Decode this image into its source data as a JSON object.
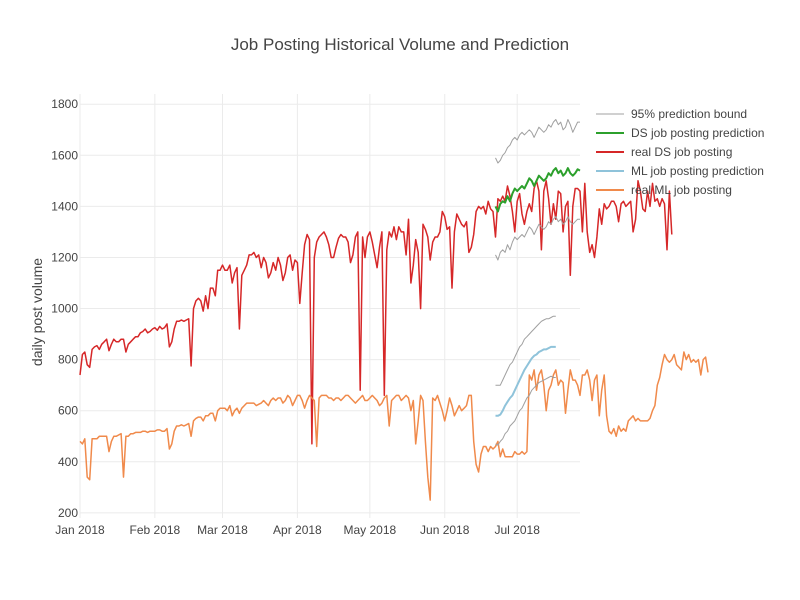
{
  "chart_data": {
    "type": "line",
    "title": "Job Posting Historical Volume and Prediction",
    "xlabel": "",
    "ylabel": "daily post volume",
    "x_range": [
      "2018-01-01",
      "2018-07-27"
    ],
    "ylim": [
      180,
      1840
    ],
    "grid": true,
    "legend_position": "right",
    "x_ticks": [
      {
        "date": "2018-01-01",
        "label": "Jan 2018"
      },
      {
        "date": "2018-02-01",
        "label": "Feb 2018"
      },
      {
        "date": "2018-03-01",
        "label": "Mar 2018"
      },
      {
        "date": "2018-04-01",
        "label": "Apr 2018"
      },
      {
        "date": "2018-05-01",
        "label": "May 2018"
      },
      {
        "date": "2018-06-01",
        "label": "Jun 2018"
      },
      {
        "date": "2018-07-01",
        "label": "Jul 2018"
      }
    ],
    "y_ticks": [
      200,
      400,
      600,
      800,
      1000,
      1200,
      1400,
      1600,
      1800
    ],
    "legend": [
      {
        "name": "95% prediction bound",
        "color": "#a0a0a0"
      },
      {
        "name": "DS job posting prediction",
        "color": "#2ca02c"
      },
      {
        "name": "real DS job posting",
        "color": "#d62728"
      },
      {
        "name": "ML job posting prediction",
        "color": "#8fc3da"
      },
      {
        "name": "real ML job posting",
        "color": "#f08a4b"
      }
    ],
    "series": [
      {
        "name": "real DS job posting",
        "color": "#d62728",
        "width": 1.5,
        "start_date": "2018-01-01",
        "values": [
          740,
          820,
          830,
          780,
          770,
          840,
          850,
          855,
          840,
          860,
          870,
          880,
          835,
          860,
          880,
          870,
          870,
          880,
          880,
          830,
          860,
          870,
          880,
          890,
          890,
          905,
          910,
          920,
          905,
          910,
          920,
          925,
          915,
          930,
          920,
          925,
          940,
          850,
          870,
          920,
          950,
          950,
          955,
          950,
          955,
          960,
          775,
          1000,
          1030,
          1040,
          1030,
          990,
          1050,
          1000,
          1080,
          1080,
          1050,
          1150,
          1150,
          1170,
          1150,
          1150,
          1170,
          1100,
          1140,
          1160,
          920,
          1130,
          1150,
          1170,
          1210,
          1210,
          1220,
          1200,
          1210,
          1160,
          1200,
          1180,
          1120,
          1140,
          1180,
          1150,
          1200,
          1170,
          1110,
          1140,
          1200,
          1210,
          1150,
          1190,
          1180,
          1020,
          1140,
          1250,
          1290,
          1270,
          470,
          1200,
          1260,
          1280,
          1290,
          1300,
          1280,
          1250,
          1200,
          1200,
          1240,
          1275,
          1290,
          1280,
          1280,
          1260,
          1180,
          1210,
          1280,
          1300,
          680,
          1280,
          1200,
          1280,
          1300,
          1260,
          1210,
          1160,
          1240,
          1300,
          660,
          1230,
          1300,
          1280,
          1320,
          1270,
          1320,
          1300,
          1300,
          1210,
          1350,
          1100,
          1170,
          1270,
          1220,
          1000,
          1330,
          1310,
          1280,
          1190,
          1260,
          1280,
          1280,
          1300,
          1380,
          1360,
          1310,
          1320,
          1080,
          1300,
          1370,
          1350,
          1330,
          1320,
          1340,
          1220,
          1240,
          1290,
          1380,
          1400,
          1390,
          1400,
          1370,
          1420,
          1390,
          1380,
          1280,
          1430,
          1420,
          1440,
          1420,
          1480,
          1440,
          1380,
          1300,
          1420,
          1450,
          1370,
          1330,
          1380,
          1410,
          1380,
          1470,
          1500,
          1460,
          1230,
          1460,
          1500,
          1430,
          1330,
          1410,
          1350,
          1460,
          1450,
          1300,
          1400,
          1420,
          1130,
          1400,
          1470,
          1470,
          1460,
          1300,
          1490,
          1300,
          1220,
          1250,
          1200,
          1280,
          1390,
          1330,
          1410,
          1390,
          1400,
          1420,
          1420,
          1400,
          1340,
          1410,
          1420,
          1400,
          1410,
          1420,
          1300,
          1350,
          1500,
          1460,
          1390,
          1380,
          1460,
          1400,
          1490,
          1420,
          1430,
          1400,
          1430,
          1410,
          1230,
          1460,
          1290
        ]
      },
      {
        "name": "real ML job posting",
        "color": "#f08a4b",
        "width": 1.5,
        "start_date": "2018-01-01",
        "values": [
          480,
          470,
          490,
          340,
          330,
          490,
          490,
          490,
          500,
          500,
          500,
          500,
          440,
          480,
          500,
          500,
          505,
          510,
          340,
          500,
          500,
          510,
          510,
          515,
          515,
          515,
          520,
          520,
          515,
          520,
          520,
          520,
          525,
          525,
          520,
          520,
          530,
          450,
          470,
          520,
          540,
          540,
          545,
          540,
          545,
          550,
          500,
          560,
          570,
          575,
          575,
          560,
          580,
          580,
          590,
          590,
          560,
          600,
          610,
          610,
          610,
          600,
          620,
          580,
          600,
          610,
          590,
          610,
          620,
          630,
          630,
          630,
          630,
          620,
          625,
          630,
          640,
          630,
          620,
          640,
          650,
          640,
          650,
          650,
          630,
          640,
          660,
          650,
          620,
          640,
          660,
          660,
          640,
          610,
          640,
          660,
          650,
          640,
          460,
          650,
          660,
          660,
          660,
          650,
          650,
          640,
          650,
          650,
          640,
          650,
          660,
          660,
          650,
          640,
          630,
          640,
          650,
          660,
          640,
          640,
          650,
          660,
          650,
          640,
          620,
          630,
          650,
          660,
          540,
          640,
          650,
          660,
          660,
          640,
          650,
          660,
          650,
          600,
          640,
          470,
          560,
          660,
          640,
          480,
          340,
          250,
          650,
          640,
          660,
          630,
          600,
          560,
          600,
          650,
          620,
          580,
          600,
          620,
          600,
          610,
          620,
          660,
          660,
          480,
          390,
          360,
          430,
          460,
          460,
          440,
          460,
          450,
          460,
          480,
          420,
          450,
          420,
          420,
          420,
          420,
          440,
          430,
          430,
          440,
          430,
          440,
          740,
          720,
          760,
          680,
          740,
          760,
          700,
          600,
          680,
          700,
          740,
          760,
          700,
          720,
          710,
          590,
          680,
          760,
          720,
          720,
          700,
          660,
          740,
          740,
          760,
          720,
          640,
          720,
          740,
          580,
          680,
          740,
          580,
          520,
          510,
          530,
          500,
          540,
          520,
          530,
          520,
          560,
          570,
          580,
          560,
          570,
          560,
          560,
          560,
          560,
          570,
          600,
          620,
          700,
          730,
          780,
          820,
          800,
          790,
          800,
          820,
          780,
          770,
          760,
          830,
          800,
          820,
          790,
          800,
          790,
          800,
          740,
          800,
          810,
          750
        ]
      },
      {
        "name": "DS job posting prediction",
        "color": "#2ca02c",
        "width": 2,
        "start_date": "2018-06-22",
        "values": [
          1400,
          1380,
          1410,
          1420,
          1415,
          1440,
          1420,
          1450,
          1470,
          1460,
          1470,
          1480,
          1470,
          1490,
          1510,
          1500,
          1480,
          1500,
          1520,
          1510,
          1500,
          1510,
          1530,
          1520,
          1540,
          1550,
          1530,
          1540,
          1520,
          1530,
          1550,
          1530,
          1520,
          1530,
          1545,
          1540
        ]
      },
      {
        "name": "ML job posting prediction",
        "color": "#8fc3da",
        "width": 2,
        "start_date": "2018-06-22",
        "values": [
          580,
          580,
          585,
          600,
          620,
          635,
          650,
          660,
          680,
          700,
          720,
          740,
          760,
          775,
          790,
          805,
          815,
          820,
          830,
          835,
          840,
          840,
          845,
          850,
          850,
          850
        ]
      },
      {
        "name": "95% prediction bound",
        "color": "#a0a0a0",
        "width": 1,
        "start_date": "2018-06-22",
        "values": [
          1590,
          1570,
          1580,
          1600,
          1610,
          1630,
          1640,
          1660,
          1670,
          1660,
          1680,
          1690,
          1680,
          1690,
          1700,
          1690,
          1670,
          1690,
          1710,
          1700,
          1690,
          1700,
          1720,
          1710,
          1730,
          1740,
          1720,
          1730,
          1700,
          1710,
          1740,
          1720,
          1690,
          1710,
          1730,
          1730
        ]
      },
      {
        "name": "95% prediction bound",
        "color": "#a0a0a0",
        "width": 1,
        "start_date": "2018-06-22",
        "values": [
          1210,
          1190,
          1220,
          1230,
          1220,
          1250,
          1230,
          1260,
          1280,
          1270,
          1280,
          1290,
          1280,
          1300,
          1320,
          1310,
          1290,
          1310,
          1330,
          1320,
          1310,
          1320,
          1340,
          1330,
          1350,
          1360,
          1340,
          1350,
          1330,
          1340,
          1360,
          1340,
          1330,
          1340,
          1350,
          1350
        ]
      },
      {
        "name": "95% prediction bound",
        "color": "#a0a0a0",
        "width": 1,
        "start_date": "2018-06-22",
        "values": [
          700,
          700,
          700,
          720,
          740,
          760,
          780,
          790,
          810,
          830,
          850,
          860,
          880,
          890,
          900,
          910,
          920,
          930,
          940,
          950,
          955,
          960,
          960,
          965,
          970,
          970
        ]
      },
      {
        "name": "95% prediction bound",
        "color": "#a0a0a0",
        "width": 1,
        "start_date": "2018-06-22",
        "values": [
          470,
          465,
          480,
          490,
          510,
          520,
          540,
          550,
          560,
          580,
          600,
          610,
          630,
          650,
          660,
          680,
          690,
          700,
          710,
          715,
          720,
          725,
          730,
          735,
          730,
          730
        ]
      }
    ]
  }
}
